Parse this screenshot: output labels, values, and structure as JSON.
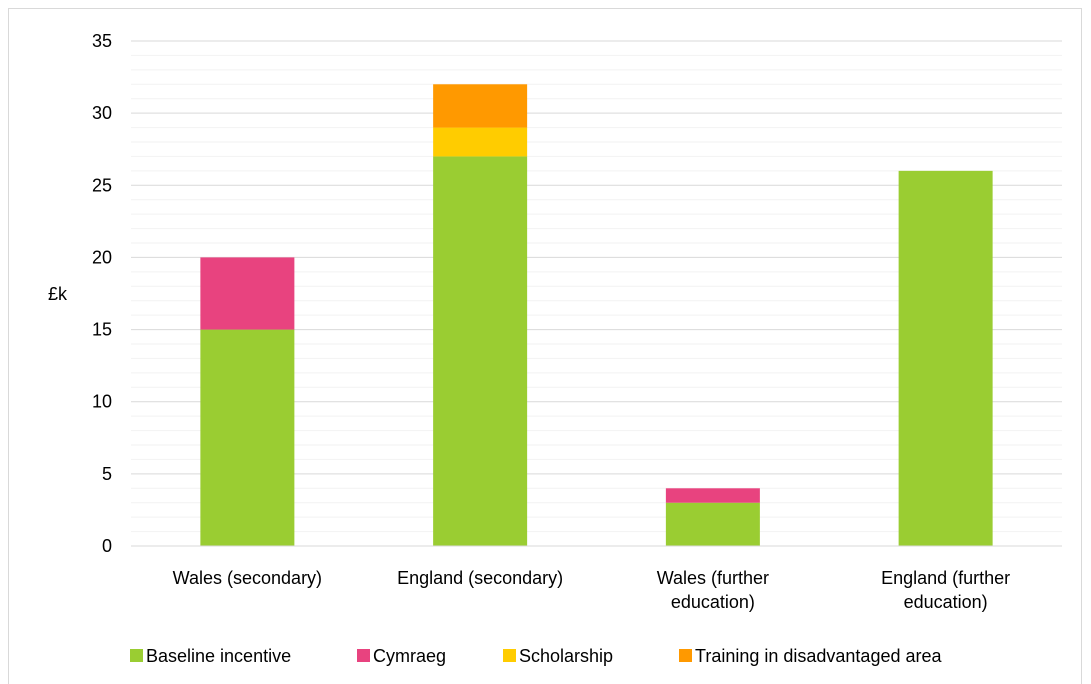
{
  "chart_data": {
    "type": "bar",
    "stacked": true,
    "title": "",
    "xlabel": "",
    "ylabel": "£k",
    "ylim": [
      0,
      35
    ],
    "yticks": [
      0,
      5,
      10,
      15,
      20,
      25,
      30,
      35
    ],
    "minor_gridlines": true,
    "legend_position": "bottom",
    "categories": [
      [
        "Wales (secondary)"
      ],
      [
        "England (secondary)"
      ],
      [
        "Wales (further",
        "education)"
      ],
      [
        "England (further",
        "education)"
      ]
    ],
    "series": [
      {
        "name": "Baseline incentive",
        "color": "#9acd32",
        "values": [
          15,
          27,
          3,
          26
        ]
      },
      {
        "name": "Cymraeg",
        "color": "#e8437f",
        "values": [
          5,
          0,
          1,
          0
        ]
      },
      {
        "name": "Scholarship",
        "color": "#ffcc00",
        "values": [
          0,
          2,
          0,
          0
        ]
      },
      {
        "name": "Training in disadvantaged area",
        "color": "#ff9900",
        "values": [
          0,
          3,
          0,
          0
        ]
      }
    ]
  }
}
